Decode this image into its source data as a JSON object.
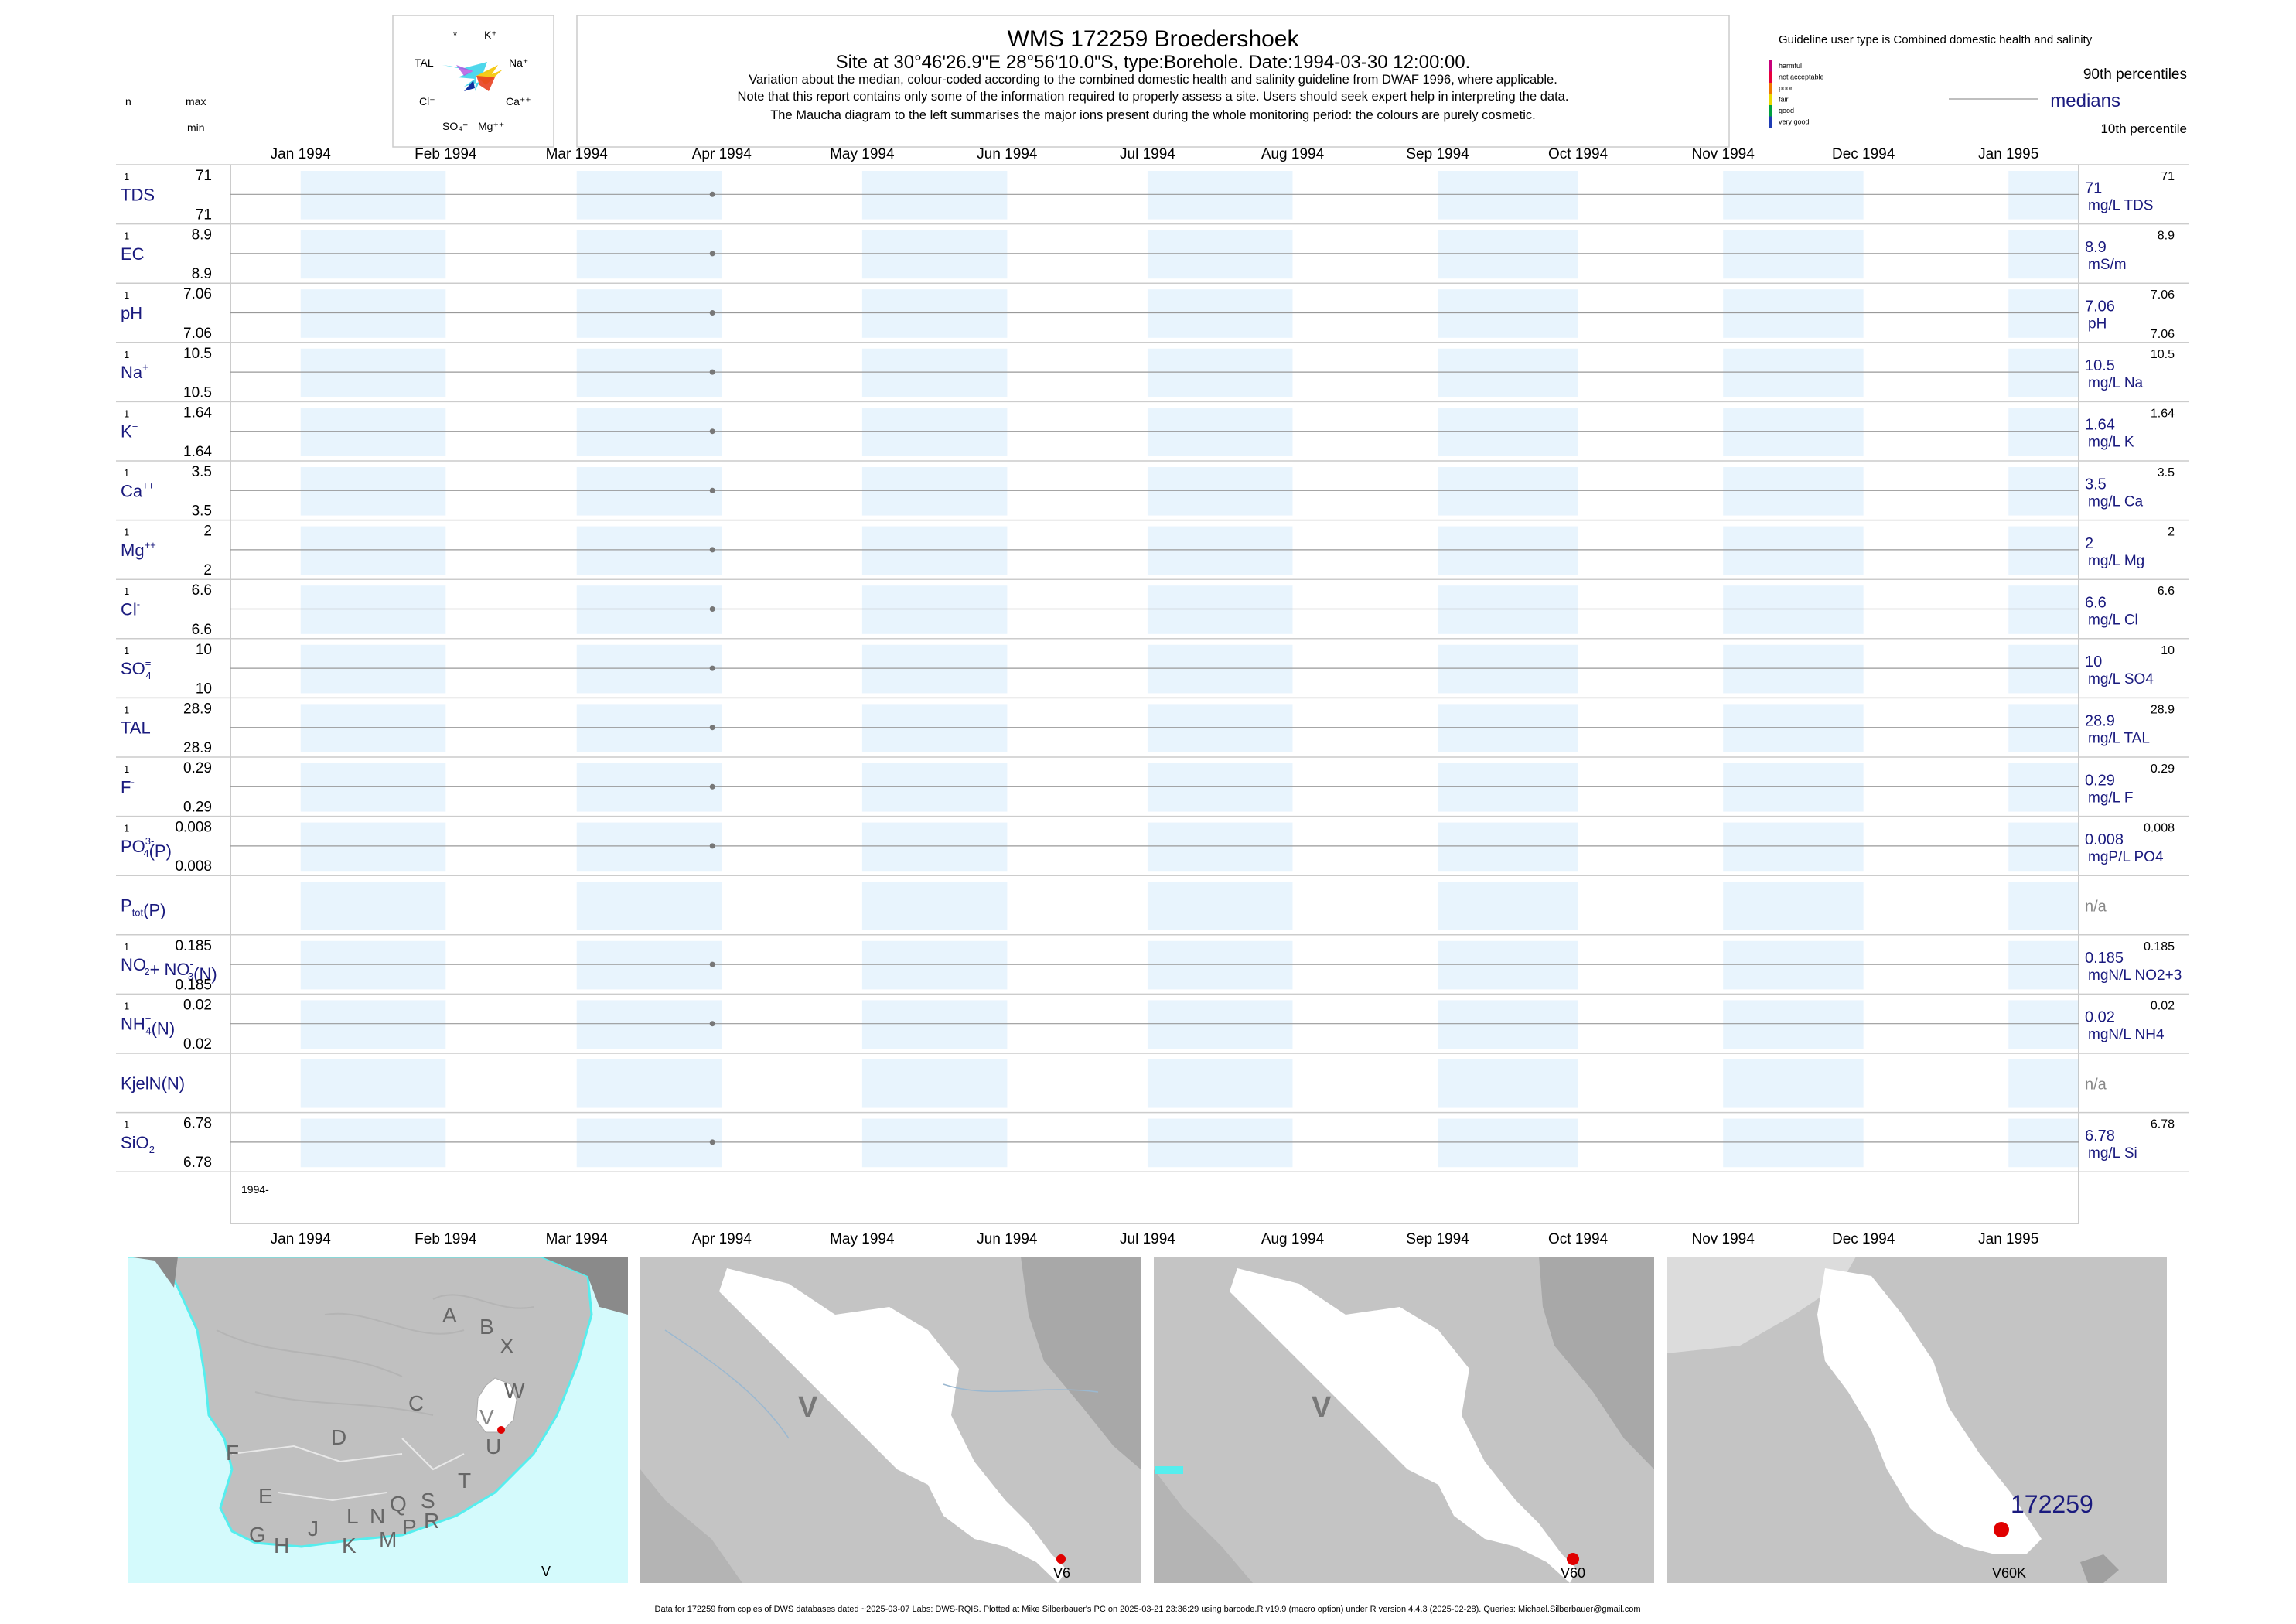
{
  "header": {
    "title": "WMS 172259  Broedershoek",
    "subtitle": "Site at 30°46'26.9\"E 28°56'10.0\"S, type:Borehole. Date:1994-03-30 12:00:00.",
    "notes": [
      "Variation about the median,  colour-coded according to the combined domestic health and salinity guideline from DWAF 1996, where applicable.",
      "Note that this report contains only some of the information required to properly assess a site. Users should seek expert help in interpreting the data.",
      "The Maucha diagram to the left summarises the major ions present during the whole monitoring period: the colours are purely cosmetic."
    ],
    "left_headers": {
      "n": "n",
      "max": "max",
      "min": "min"
    }
  },
  "maucha": {
    "labels": [
      "*",
      "K⁺",
      "TAL",
      "Na⁺",
      "Cl⁻",
      "Ca⁺⁺",
      "SO₄⁼",
      "Mg⁺⁺"
    ]
  },
  "legend": {
    "guideline_title": "Guideline user type is Combined domestic health and salinity",
    "categories": [
      {
        "label": "harmful",
        "color": "#c8007a"
      },
      {
        "label": "not acceptable",
        "color": "#e8003c"
      },
      {
        "label": "poor",
        "color": "#f07800"
      },
      {
        "label": "fair",
        "color": "#e8d800"
      },
      {
        "label": "good",
        "color": "#00a040"
      },
      {
        "label": "very good",
        "color": "#1e3cb4"
      }
    ],
    "p90": "90th percentiles",
    "medians": "medians",
    "p10": "10th percentile"
  },
  "chart_data": {
    "type": "line",
    "x_tick_labels": [
      "Jan 1994",
      "Feb 1994",
      "Mar 1994",
      "Apr 1994",
      "May 1994",
      "Jun 1994",
      "Jul 1994",
      "Aug 1994",
      "Sep 1994",
      "Oct 1994",
      "Nov 1994",
      "Dec 1994",
      "Jan 1995"
    ],
    "x_ticks": [
      "1994-01-01",
      "1994-02-01",
      "1994-03-01",
      "1994-04-01",
      "1994-05-01",
      "1994-06-01",
      "1994-07-01",
      "1994-08-01",
      "1994-09-01",
      "1994-10-01",
      "1994-11-01",
      "1994-12-01",
      "1995-01-01"
    ],
    "xlim": [
      "1993-12-17",
      "1995-01-16"
    ],
    "sample_date": "1994-03-30",
    "bottom_year_label": "1994-",
    "shading_color": "#e8f4fd",
    "series": [
      {
        "name": "TDS",
        "n": "1",
        "max": "71",
        "min": "71",
        "value": 71,
        "median_label": "71",
        "p90_label": "71",
        "p10_label": "",
        "unit": "mg/L TDS"
      },
      {
        "name": "EC",
        "n": "1",
        "max": "8.9",
        "min": "8.9",
        "value": 8.9,
        "median_label": "8.9",
        "p90_label": "8.9",
        "p10_label": "",
        "unit": "mS/m"
      },
      {
        "name": "pH",
        "n": "1",
        "max": "7.06",
        "min": "7.06",
        "value": 7.06,
        "median_label": "7.06",
        "p90_label": "7.06",
        "p10_label": "7.06",
        "unit": "pH"
      },
      {
        "name": "Na",
        "sup": "+",
        "n": "1",
        "max": "10.5",
        "min": "10.5",
        "value": 10.5,
        "median_label": "10.5",
        "p90_label": "10.5",
        "p10_label": "",
        "unit": "mg/L Na"
      },
      {
        "name": "K",
        "sup": "+",
        "n": "1",
        "max": "1.64",
        "min": "1.64",
        "value": 1.64,
        "median_label": "1.64",
        "p90_label": "1.64",
        "p10_label": "",
        "unit": "mg/L K"
      },
      {
        "name": "Ca",
        "sup": "++",
        "n": "1",
        "max": "3.5",
        "min": "3.5",
        "value": 3.5,
        "median_label": "3.5",
        "p90_label": "3.5",
        "p10_label": "",
        "unit": "mg/L Ca"
      },
      {
        "name": "Mg",
        "sup": "++",
        "n": "1",
        "max": "2",
        "min": "2",
        "value": 2,
        "median_label": "2",
        "p90_label": "2",
        "p10_label": "",
        "unit": "mg/L Mg"
      },
      {
        "name": "Cl",
        "sup": "-",
        "n": "1",
        "max": "6.6",
        "min": "6.6",
        "value": 6.6,
        "median_label": "6.6",
        "p90_label": "6.6",
        "p10_label": "",
        "unit": "mg/L Cl"
      },
      {
        "name": "SO",
        "sub": "4",
        "sup": "=",
        "n": "1",
        "max": "10",
        "min": "10",
        "value": 10,
        "median_label": "10",
        "p90_label": "10",
        "p10_label": "",
        "unit": "mg/L SO4"
      },
      {
        "name": "TAL",
        "n": "1",
        "max": "28.9",
        "min": "28.9",
        "value": 28.9,
        "median_label": "28.9",
        "p90_label": "28.9",
        "p10_label": "",
        "unit": "mg/L TAL"
      },
      {
        "name": "F",
        "sup": "-",
        "n": "1",
        "max": "0.29",
        "min": "0.29",
        "value": 0.29,
        "median_label": "0.29",
        "p90_label": "0.29",
        "p10_label": "",
        "unit": "mg/L F"
      },
      {
        "name": "PO",
        "sub": "4",
        "sup": "3-",
        "tail": "(P)",
        "n": "1",
        "max": "0.008",
        "min": "0.008",
        "value": 0.008,
        "median_label": "0.008",
        "p90_label": "0.008",
        "p10_label": "",
        "unit": "mgP/L PO4"
      },
      {
        "name": "P",
        "sub": "tot",
        "tail": "(P)",
        "n": "",
        "max": "",
        "min": "",
        "value": null,
        "median_label": "n/a",
        "p90_label": "",
        "p10_label": "",
        "unit": ""
      },
      {
        "name": "NO",
        "sub": "2",
        "sup": "-",
        "tail": "+ NO",
        "sub2": "3",
        "sup2": "-",
        "tail2": "(N)",
        "n": "1",
        "max": "0.185",
        "min": "0.185",
        "value": 0.185,
        "median_label": "0.185",
        "p90_label": "0.185",
        "p10_label": "",
        "unit": "mgN/L NO2+3"
      },
      {
        "name": "NH",
        "sub": "4",
        "sup": "+",
        "tail": "(N)",
        "n": "1",
        "max": "0.02",
        "min": "0.02",
        "value": 0.02,
        "median_label": "0.02",
        "p90_label": "0.02",
        "p10_label": "",
        "unit": "mgN/L NH4"
      },
      {
        "name": "KjelN(N)",
        "n": "",
        "max": "",
        "min": "",
        "value": null,
        "median_label": "n/a",
        "p90_label": "",
        "p10_label": "",
        "unit": ""
      },
      {
        "name": "SiO",
        "sub": "2",
        "n": "1",
        "max": "6.78",
        "min": "6.78",
        "value": 6.78,
        "median_label": "6.78",
        "p90_label": "6.78",
        "p10_label": "",
        "unit": "mg/L Si"
      }
    ]
  },
  "maps": {
    "map1": {
      "letters": [
        "A",
        "B",
        "X",
        "W",
        "C",
        "V",
        "U",
        "D",
        "T",
        "F",
        "E",
        "S",
        "R",
        "N",
        "Q",
        "L",
        "P",
        "J",
        "M",
        "K",
        "G",
        "H"
      ],
      "corner": "V"
    },
    "map2": {
      "region": "V",
      "corner": "V6"
    },
    "map3": {
      "region": "V",
      "corner": "V60"
    },
    "map4": {
      "site": "172259",
      "corner": "V60K"
    },
    "colors": {
      "land": "#c0c0c0",
      "ocean": "#d4fafc",
      "highlight": "#ffffff",
      "site": "#e00000",
      "dark": "#888888"
    }
  },
  "footer": "Data for 172259 from copies of DWS databases dated ~2025-03-07 Labs: DWS-RQIS. Plotted at Mike Silberbauer's PC on 2025-03-21 23:36:29 using barcode.R v19.9 (macro option) under R version 4.4.3 (2025-02-28). Queries: Michael.Silberbauer@gmail.com"
}
